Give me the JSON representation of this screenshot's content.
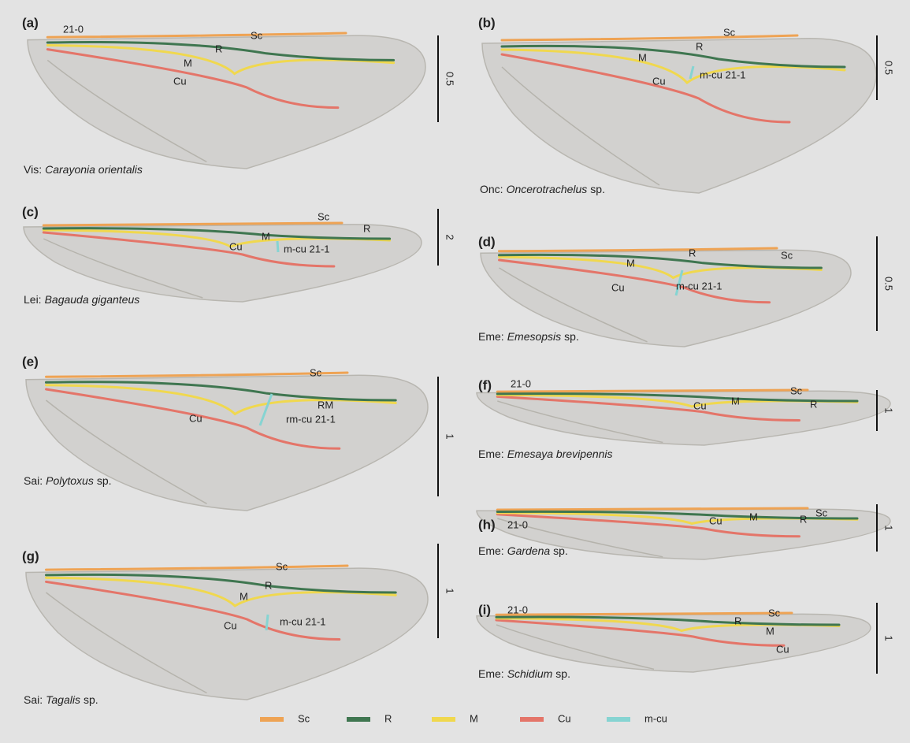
{
  "panels": [
    {
      "label": "(a)",
      "code": "21-0",
      "group": "Vis:",
      "taxon": "Carayonia orientalis",
      "scale": "0.5",
      "veins": [
        "Sc",
        "R",
        "M",
        "Cu"
      ]
    },
    {
      "label": "(b)",
      "group": "Onc:",
      "taxon": "Oncerotrachelus",
      "suffix": "sp.",
      "scale": "0.5",
      "veins": [
        "Sc",
        "R",
        "M",
        "m-cu 21-1",
        "Cu"
      ]
    },
    {
      "label": "(c)",
      "group": "Lei:",
      "taxon": "Bagauda giganteus",
      "scale": "2",
      "veins": [
        "Sc",
        "R",
        "M",
        "m-cu 21-1",
        "Cu"
      ]
    },
    {
      "label": "(d)",
      "group": "Eme:",
      "taxon": "Emesopsis",
      "suffix": "sp.",
      "scale": "0.5",
      "veins": [
        "Sc",
        "R",
        "M",
        "m-cu 21-1",
        "Cu"
      ]
    },
    {
      "label": "(e)",
      "group": "Sai:",
      "taxon": "Polytoxus",
      "suffix": "sp.",
      "scale": "1",
      "veins": [
        "Sc",
        "RM",
        "rm-cu 21-1",
        "Cu"
      ]
    },
    {
      "label": "(f)",
      "code": "21-0",
      "group": "Eme:",
      "taxon": "Emesaya brevipennis",
      "scale": "1",
      "veins": [
        "Sc",
        "R",
        "M",
        "Cu"
      ]
    },
    {
      "label": "(g)",
      "group": "Sai:",
      "taxon": "Tagalis",
      "suffix": "sp.",
      "scale": "1",
      "veins": [
        "Sc",
        "R",
        "M",
        "m-cu 21-1",
        "Cu"
      ]
    },
    {
      "label": "(h)",
      "code": "21-0",
      "group": "Eme:",
      "taxon": "Gardena",
      "suffix": "sp.",
      "scale": "1",
      "veins": [
        "Sc",
        "R",
        "M",
        "Cu"
      ]
    },
    {
      "label": "(i)",
      "code": "21-0",
      "group": "Eme:",
      "taxon": "Schidium",
      "suffix": "sp.",
      "scale": "1",
      "veins": [
        "Sc",
        "R",
        "M",
        "Cu"
      ]
    }
  ],
  "legend": [
    {
      "name": "Sc",
      "color": "#eea354"
    },
    {
      "name": "R",
      "color": "#3f7650"
    },
    {
      "name": "M",
      "color": "#f0d84e"
    },
    {
      "name": "Cu",
      "color": "#e47569"
    },
    {
      "name": "m-cu",
      "color": "#86d4d2"
    }
  ]
}
